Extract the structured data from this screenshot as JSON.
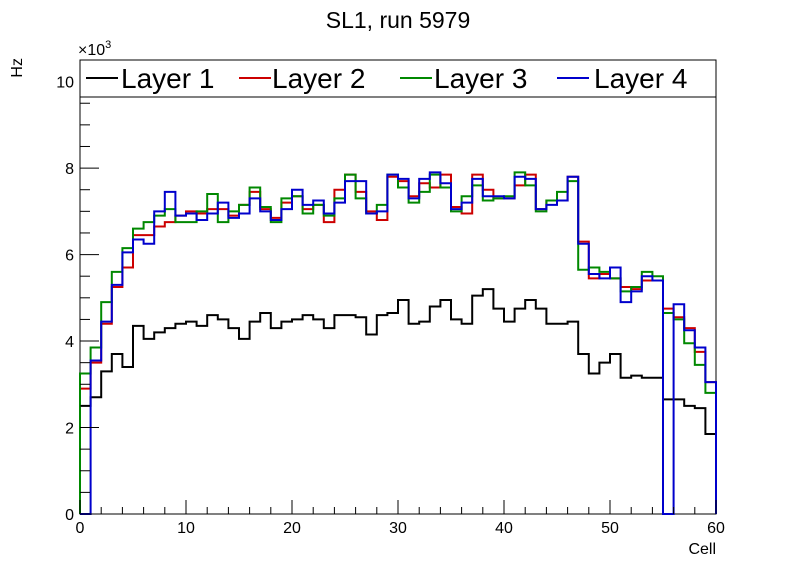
{
  "chart_data": {
    "type": "line",
    "title": "SL1, run 5979",
    "xlabel": "Cell",
    "ylabel": "Hz",
    "y_multiplier_label": "×10",
    "y_multiplier_exp": "3",
    "xlim": [
      0,
      60
    ],
    "ylim": [
      0,
      10.5
    ],
    "x_ticks": [
      0,
      10,
      20,
      30,
      40,
      50,
      60
    ],
    "y_ticks": [
      0,
      2,
      4,
      6,
      8,
      10
    ],
    "grid": false,
    "legend_position": "top",
    "bin_width": 1,
    "series": [
      {
        "name": "Layer 1",
        "color": "#000000",
        "values": [
          2.5,
          2.7,
          3.3,
          3.7,
          3.4,
          4.35,
          4.05,
          4.2,
          4.3,
          4.4,
          4.45,
          4.35,
          4.6,
          4.5,
          4.3,
          4.05,
          4.45,
          4.65,
          4.3,
          4.45,
          4.5,
          4.6,
          4.5,
          4.3,
          4.6,
          4.6,
          4.55,
          4.15,
          4.6,
          4.65,
          4.95,
          4.4,
          4.45,
          4.8,
          4.95,
          4.5,
          4.4,
          5.05,
          5.2,
          4.75,
          4.45,
          4.75,
          4.95,
          4.75,
          4.4,
          4.4,
          4.45,
          3.7,
          3.25,
          3.5,
          3.7,
          3.15,
          3.2,
          3.15,
          3.15,
          2.65,
          2.65,
          2.5,
          2.45,
          1.85
        ]
      },
      {
        "name": "Layer 2",
        "color": "#cc0000",
        "values": [
          2.9,
          3.5,
          4.4,
          5.25,
          5.7,
          6.45,
          6.45,
          6.65,
          6.75,
          6.9,
          7.0,
          6.95,
          7.05,
          7.05,
          6.9,
          7.15,
          7.45,
          7.05,
          6.85,
          7.2,
          7.35,
          7.05,
          7.15,
          6.75,
          7.5,
          7.85,
          7.45,
          7.0,
          6.8,
          7.8,
          7.7,
          7.35,
          7.65,
          7.55,
          7.85,
          7.1,
          6.95,
          7.85,
          7.5,
          7.3,
          7.3,
          7.6,
          7.85,
          7.05,
          7.25,
          7.25,
          7.8,
          6.3,
          5.45,
          5.55,
          5.45,
          5.25,
          5.2,
          5.4,
          5.4,
          4.75,
          4.55,
          4.3,
          3.75,
          3.05
        ]
      },
      {
        "name": "Layer 3",
        "color": "#008800",
        "values": [
          3.25,
          3.85,
          4.9,
          5.6,
          6.15,
          6.6,
          6.75,
          6.9,
          7.05,
          6.75,
          6.75,
          7.0,
          7.4,
          6.75,
          7.0,
          7.15,
          7.55,
          7.1,
          6.75,
          7.3,
          7.35,
          6.95,
          7.15,
          6.9,
          7.3,
          7.85,
          7.3,
          6.95,
          7.15,
          7.85,
          7.55,
          7.2,
          7.45,
          7.85,
          7.55,
          7.0,
          7.35,
          7.6,
          7.25,
          7.3,
          7.35,
          7.9,
          7.6,
          7.0,
          7.25,
          7.45,
          7.7,
          5.65,
          5.7,
          5.6,
          5.45,
          5.15,
          5.25,
          5.6,
          5.5,
          4.65,
          4.5,
          3.95,
          3.45,
          2.8
        ]
      },
      {
        "name": "Layer 4",
        "color": "#0000cc",
        "values": [
          0.0,
          3.55,
          4.45,
          5.3,
          6.05,
          6.35,
          6.25,
          7.0,
          7.45,
          6.9,
          6.95,
          6.8,
          6.95,
          7.2,
          6.85,
          6.95,
          7.3,
          7.0,
          6.8,
          7.05,
          7.5,
          7.15,
          7.25,
          6.95,
          7.2,
          7.7,
          7.7,
          6.95,
          7.0,
          7.85,
          7.75,
          7.3,
          7.75,
          7.9,
          7.65,
          7.05,
          7.2,
          7.75,
          7.35,
          7.35,
          7.3,
          7.8,
          7.75,
          7.05,
          7.15,
          7.25,
          7.8,
          6.25,
          5.55,
          5.45,
          5.7,
          4.9,
          5.15,
          5.5,
          5.4,
          0.0,
          4.85,
          4.25,
          3.85,
          3.05
        ]
      }
    ]
  }
}
